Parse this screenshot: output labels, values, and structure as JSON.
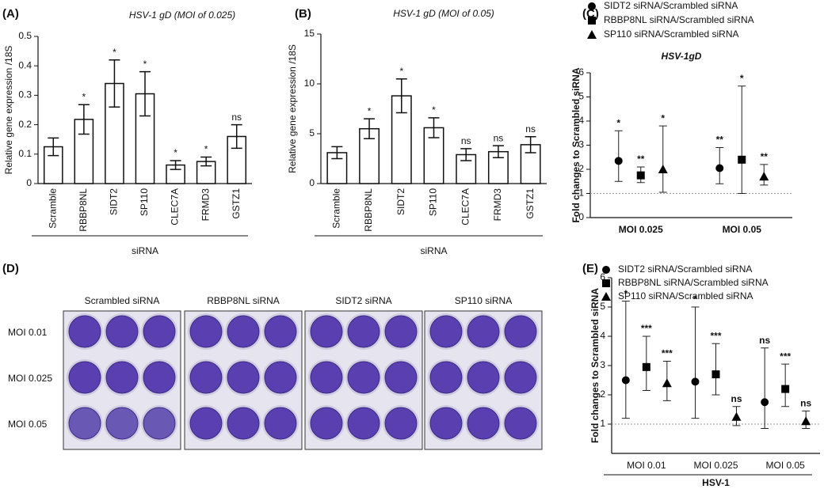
{
  "chart_data": [
    {
      "type": "bar",
      "panel_label": "(A)",
      "title": "HSV-1 gD (MOI of 0.025)",
      "ylabel": "Relative gene expression /18S",
      "xlabel": "siRNA",
      "categories": [
        "Scramble",
        "RBBP8NL",
        "SIDT2",
        "SP110",
        "CLEC7A",
        "FRMD3",
        "GSTZ1"
      ],
      "values": [
        0.125,
        0.218,
        0.34,
        0.305,
        0.063,
        0.075,
        0.16
      ],
      "errors": [
        0.03,
        0.05,
        0.08,
        0.075,
        0.015,
        0.015,
        0.04
      ],
      "annotations": [
        null,
        "*",
        "*",
        "*",
        "*",
        "*",
        "ns"
      ],
      "ylim": [
        0,
        0.5
      ],
      "yticks": [
        0,
        0.1,
        0.2,
        0.3,
        0.4,
        0.5
      ],
      "color": "#ffffff"
    },
    {
      "type": "bar",
      "panel_label": "(B)",
      "title": "HSV-1 gD (MOI of 0.05)",
      "ylabel": "Relative gene expression /18S",
      "xlabel": "siRNA",
      "categories": [
        "Scramble",
        "RBBP8NL",
        "SIDT2",
        "SP110",
        "CLEC7A",
        "FRMD3",
        "GSTZ1"
      ],
      "values": [
        3.1,
        5.5,
        8.8,
        5.6,
        2.9,
        3.2,
        3.9
      ],
      "errors": [
        0.6,
        1.0,
        1.7,
        1.0,
        0.6,
        0.6,
        0.8
      ],
      "annotations": [
        null,
        "*",
        "*",
        "*",
        "ns",
        "ns",
        "ns"
      ],
      "ylim": [
        0,
        15
      ],
      "yticks": [
        0,
        5,
        10,
        15
      ],
      "color": "#ffffff"
    },
    {
      "type": "dot",
      "panel_label": "(C)",
      "title": "HSV-1gD",
      "ylabel": "Fold changes to Scrambled siRNA",
      "categories": [
        "MOI 0.025",
        "MOI 0.05"
      ],
      "series": [
        {
          "name": "SIDT2 siRNA/Scrambled siRNA",
          "marker": "circle",
          "color": "#000000",
          "values": [
            2.35,
            2.05
          ],
          "lower": [
            1.5,
            1.4
          ],
          "upper": [
            3.6,
            2.9
          ],
          "annotations": [
            "*",
            "**"
          ]
        },
        {
          "name": "RBBP8NL siRNA/Scrambled siRNA",
          "marker": "square",
          "color": "#000000",
          "values": [
            1.75,
            2.4
          ],
          "lower": [
            1.45,
            1.0
          ],
          "upper": [
            2.1,
            5.45
          ],
          "annotations": [
            "**",
            "*"
          ]
        },
        {
          "name": "SP110 siRNA/Scrambled siRNA",
          "marker": "triangle",
          "color": "#000000",
          "values": [
            2.0,
            1.7
          ],
          "lower": [
            1.05,
            1.35
          ],
          "upper": [
            3.8,
            2.2
          ],
          "annotations": [
            "*",
            "**"
          ]
        }
      ],
      "ylim": [
        0,
        6
      ],
      "yticks": [
        0,
        1,
        2,
        3,
        4,
        5,
        6
      ],
      "reference_line": 1
    },
    {
      "type": "dot",
      "panel_label": "(E)",
      "ylabel": "Fold changes to Scrambled siRNA",
      "xlabel": "HSV-1",
      "categories": [
        "MOI 0.01",
        "MOI 0.025",
        "MOI 0.05"
      ],
      "series": [
        {
          "name": "SIDT2 siRNA/Scrambled siRNA",
          "marker": "circle",
          "color": "#000000",
          "values": [
            2.5,
            2.45,
            1.75
          ],
          "lower": [
            1.2,
            1.2,
            0.85
          ],
          "upper": [
            5.2,
            5.0,
            3.6
          ],
          "annotations": [
            "*",
            "*",
            "ns"
          ]
        },
        {
          "name": "RBBP8NL siRNA/Scrambled siRNA",
          "marker": "square",
          "color": "#000000",
          "values": [
            2.95,
            2.7,
            2.2
          ],
          "lower": [
            2.15,
            2.0,
            1.6
          ],
          "upper": [
            4.0,
            3.75,
            3.05
          ],
          "annotations": [
            "***",
            "***",
            "***"
          ]
        },
        {
          "name": "SP110 siRNA/Scrambled siRNA",
          "marker": "triangle",
          "color": "#000000",
          "values": [
            2.4,
            1.25,
            1.1
          ],
          "lower": [
            1.8,
            0.95,
            0.85
          ],
          "upper": [
            3.15,
            1.6,
            1.45
          ],
          "annotations": [
            "***",
            "ns",
            "ns"
          ]
        }
      ],
      "ylim": [
        0,
        6
      ],
      "yticks": [
        1,
        2,
        3,
        4,
        5,
        6
      ],
      "reference_line": 1
    }
  ],
  "panel_d": {
    "panel_label": "(D)",
    "columns": [
      "Scrambled siRNA",
      "RBBP8NL siRNA",
      "SIDT2 siRNA",
      "SP110 siRNA"
    ],
    "rows": [
      "MOI 0.01",
      "MOI 0.025",
      "MOI 0.05"
    ]
  }
}
